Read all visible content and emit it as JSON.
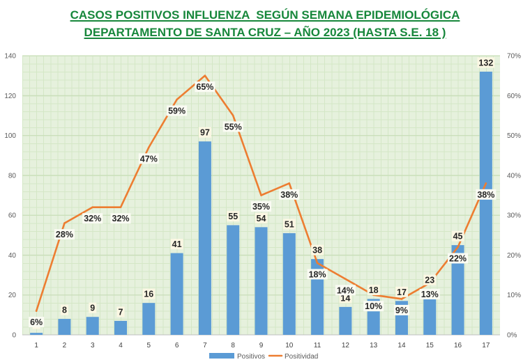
{
  "chart_data": {
    "type": "bar",
    "title": "CASOS POSITIVOS INFLUENZA  SEGÚN SEMANA EPIDEMIOLÓGICA",
    "subtitle": "DEPARTAMENTO DE SANTA CRUZ – AÑO 2023 (HASTA S.E. 18 )",
    "title_color": "#17873b",
    "categories": [
      "1",
      "2",
      "3",
      "4",
      "5",
      "6",
      "7",
      "8",
      "9",
      "10",
      "11",
      "12",
      "13",
      "14",
      "15",
      "16",
      "17"
    ],
    "series": [
      {
        "name": "Positivos",
        "type": "bar",
        "axis": "left",
        "color": "#5b9bd5",
        "values": [
          1,
          8,
          9,
          7,
          16,
          41,
          97,
          55,
          54,
          51,
          38,
          14,
          18,
          17,
          23,
          45,
          132
        ]
      },
      {
        "name": "Positividad",
        "type": "line",
        "axis": "right",
        "color": "#ed7d31",
        "unit": "%",
        "values": [
          6,
          28,
          32,
          32,
          47,
          59,
          65,
          55,
          35,
          38,
          18,
          14,
          10,
          9,
          13,
          22,
          38
        ]
      }
    ],
    "y_left": {
      "min": 0,
      "max": 140,
      "tick_labels": [
        "0",
        "20",
        "40",
        "60",
        "80",
        "100",
        "120",
        "140"
      ]
    },
    "y_right": {
      "min": 0,
      "max": 70,
      "tick_labels": [
        "0%",
        "10%",
        "20%",
        "30%",
        "40%",
        "50%",
        "60%",
        "70%"
      ]
    },
    "grid": true,
    "data_labels": true,
    "legend": "bottom"
  }
}
